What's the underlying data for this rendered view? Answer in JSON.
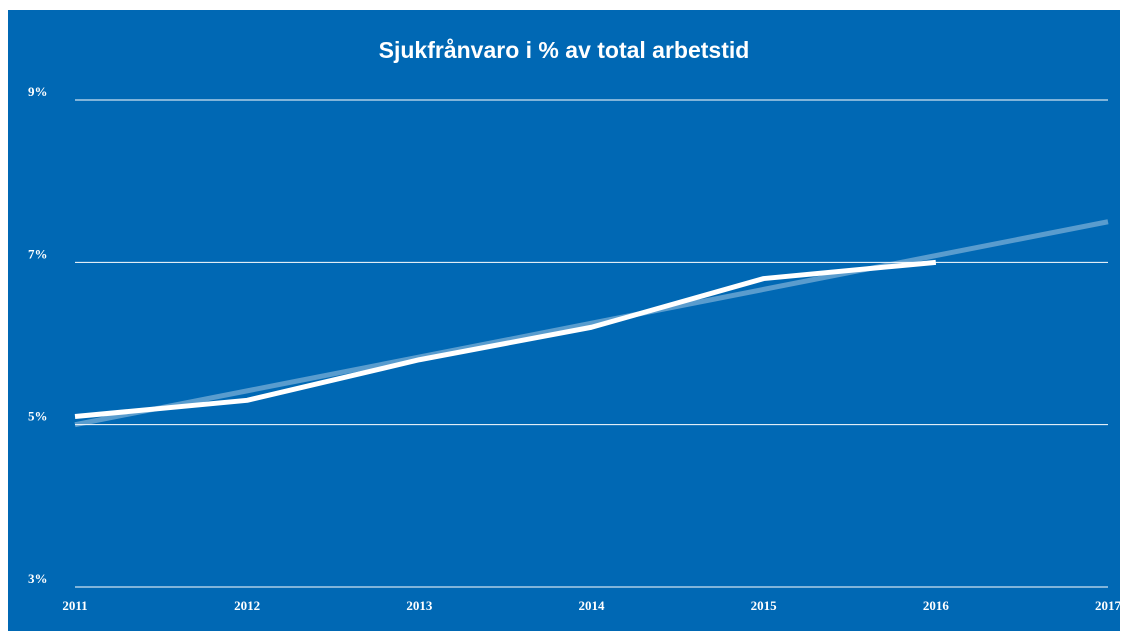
{
  "chart_data": {
    "type": "line",
    "title": "Sjukfrånvaro i % av total arbetstid",
    "series": [
      {
        "color": "#ffffff",
        "x": [
          2011,
          2012,
          2013,
          2014,
          2015,
          2016
        ],
        "values": [
          5.1,
          5.3,
          5.8,
          6.2,
          6.8,
          7.0
        ]
      },
      {
        "color": "rgba(255,255,255,0.35)",
        "x": [
          2011,
          2017
        ],
        "values": [
          5.0,
          7.5
        ]
      }
    ],
    "xlim": [
      2011,
      2017
    ],
    "xticks": [
      2011,
      2012,
      2013,
      2014,
      2015,
      2016,
      2017
    ],
    "ylim": [
      3,
      9
    ],
    "yticks": [
      {
        "value": 3,
        "label": "3%"
      },
      {
        "value": 5,
        "label": "5%"
      },
      {
        "value": 7,
        "label": "7%"
      },
      {
        "value": 9,
        "label": "9%"
      }
    ],
    "grid": true
  }
}
